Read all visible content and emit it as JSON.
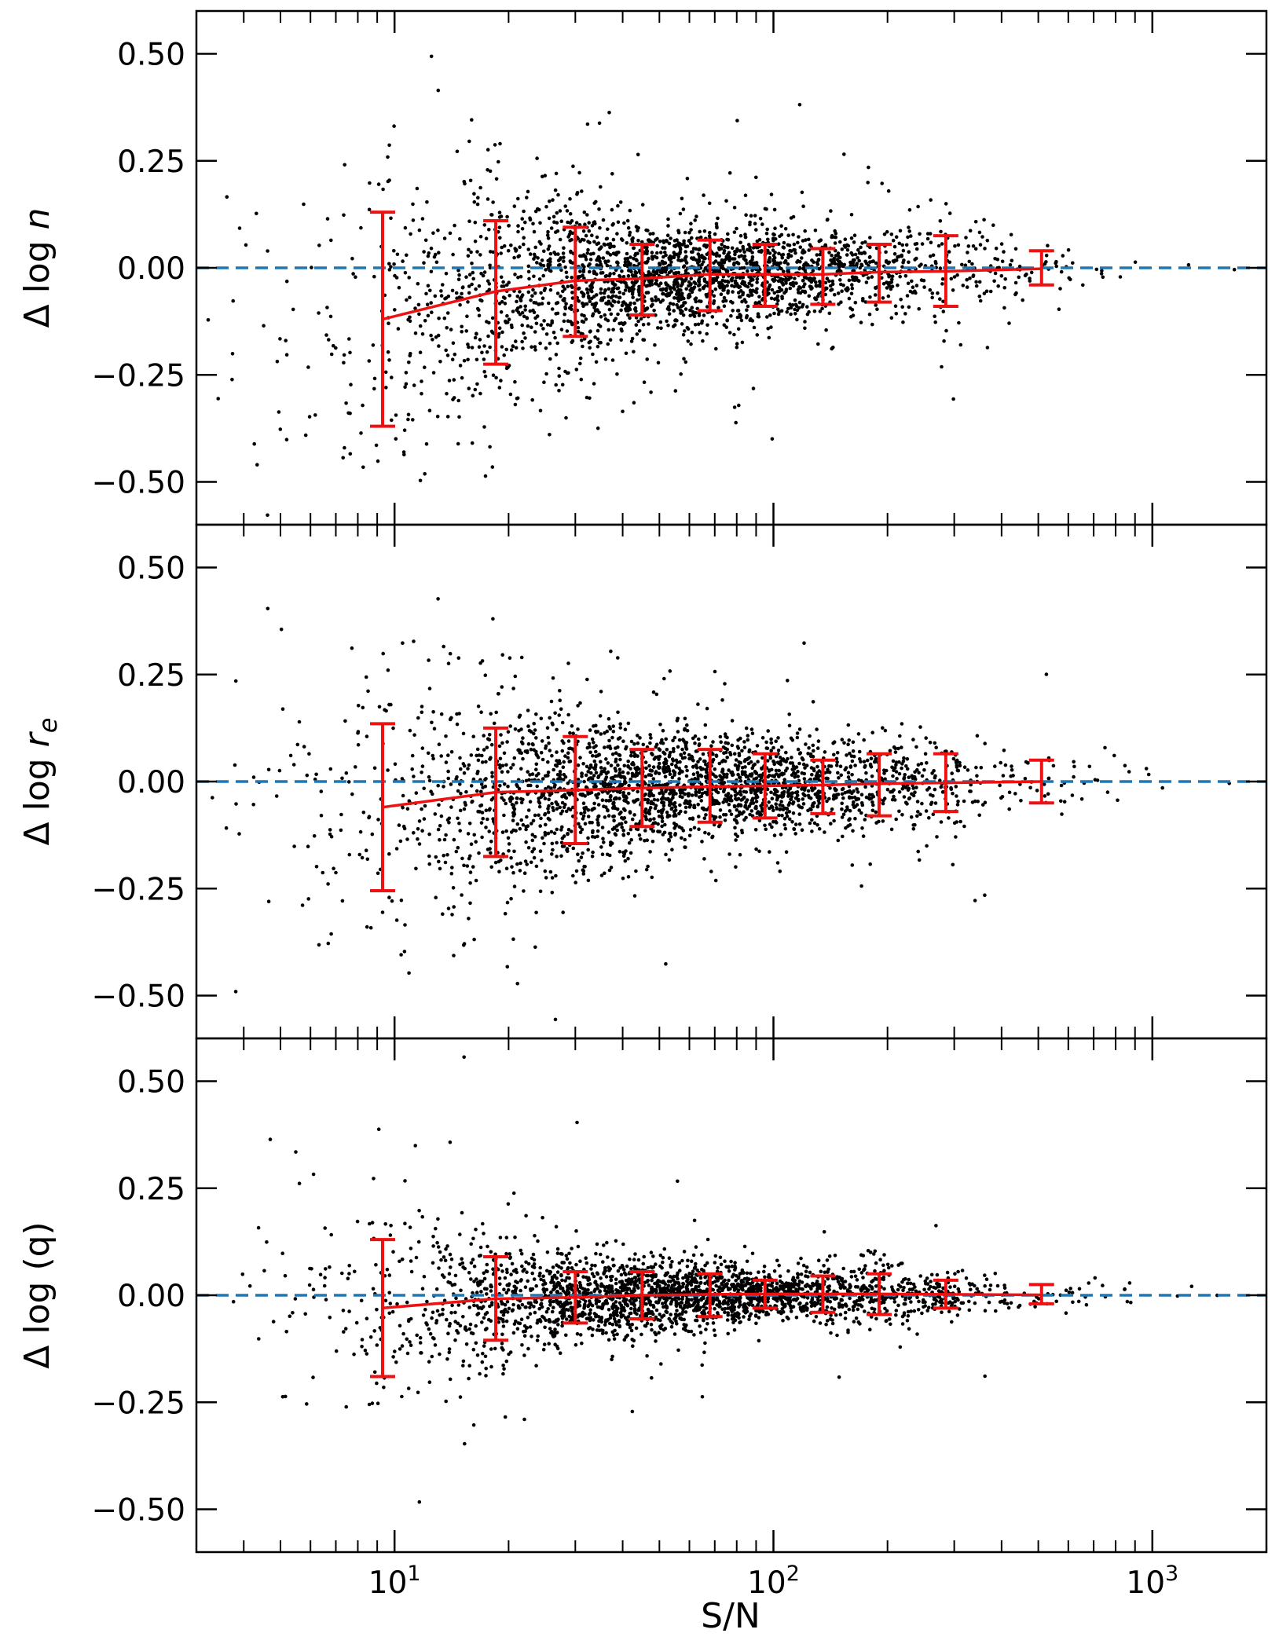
{
  "chart_data": {
    "type": "scatter",
    "x_scale": "log",
    "xlim": [
      3,
      2000
    ],
    "xlabel": "S/N",
    "x_tick_labels": [
      "10^1",
      "10^2",
      "10^3"
    ],
    "x_ticks": [
      10,
      100,
      1000
    ],
    "shared_x": true,
    "colors": {
      "points": "#000000",
      "errorbars": "#ee1111",
      "reference_line": "#1f77b4"
    },
    "panels": [
      {
        "ylabel": "Δ log n",
        "ylim": [
          -0.6,
          0.6
        ],
        "y_ticks": [
          -0.5,
          -0.25,
          0.0,
          0.25,
          0.5
        ],
        "y_tick_labels": [
          "−0.50",
          "−0.25",
          "0.00",
          "0.25",
          "0.50"
        ],
        "reference_line_y": 0.0,
        "binned": {
          "x": [
            9.3,
            18.5,
            30,
            45,
            68,
            95,
            135,
            190,
            285,
            510
          ],
          "median": [
            -0.12,
            -0.055,
            -0.03,
            -0.025,
            -0.015,
            -0.015,
            -0.015,
            -0.01,
            -0.008,
            -0.002
          ],
          "upper": [
            0.13,
            0.11,
            0.095,
            0.055,
            0.065,
            0.055,
            0.045,
            0.055,
            0.075,
            0.04
          ],
          "lower": [
            -0.37,
            -0.225,
            -0.16,
            -0.11,
            -0.1,
            -0.09,
            -0.085,
            -0.08,
            -0.09,
            -0.04
          ]
        }
      },
      {
        "ylabel": "Δ log r_e",
        "ylim": [
          -0.6,
          0.6
        ],
        "y_ticks": [
          -0.5,
          -0.25,
          0.0,
          0.25,
          0.5
        ],
        "y_tick_labels": [
          "−0.50",
          "−0.25",
          "0.00",
          "0.25",
          "0.50"
        ],
        "reference_line_y": 0.0,
        "binned": {
          "x": [
            9.3,
            18.5,
            30,
            45,
            68,
            95,
            135,
            190,
            285,
            510
          ],
          "median": [
            -0.06,
            -0.025,
            -0.02,
            -0.015,
            -0.012,
            -0.01,
            -0.008,
            -0.005,
            -0.003,
            0.0
          ],
          "upper": [
            0.135,
            0.125,
            0.105,
            0.075,
            0.075,
            0.065,
            0.05,
            0.065,
            0.065,
            0.05
          ],
          "lower": [
            -0.255,
            -0.175,
            -0.145,
            -0.105,
            -0.095,
            -0.085,
            -0.075,
            -0.08,
            -0.07,
            -0.05
          ]
        }
      },
      {
        "ylabel": "Δ log (q)",
        "ylim": [
          -0.6,
          0.6
        ],
        "y_ticks": [
          -0.5,
          -0.25,
          0.0,
          0.25,
          0.5
        ],
        "y_tick_labels": [
          "−0.50",
          "−0.25",
          "0.00",
          "0.25",
          "0.50"
        ],
        "reference_line_y": 0.0,
        "binned": {
          "x": [
            9.3,
            18.5,
            30,
            45,
            68,
            95,
            135,
            190,
            285,
            510
          ],
          "median": [
            -0.03,
            -0.008,
            -0.005,
            0.0,
            0.002,
            0.003,
            0.003,
            0.003,
            0.002,
            0.001
          ],
          "upper": [
            0.13,
            0.09,
            0.055,
            0.055,
            0.05,
            0.035,
            0.045,
            0.05,
            0.035,
            0.025
          ],
          "lower": [
            -0.19,
            -0.105,
            -0.065,
            -0.055,
            -0.05,
            -0.03,
            -0.04,
            -0.045,
            -0.03,
            -0.02
          ]
        }
      }
    ]
  }
}
